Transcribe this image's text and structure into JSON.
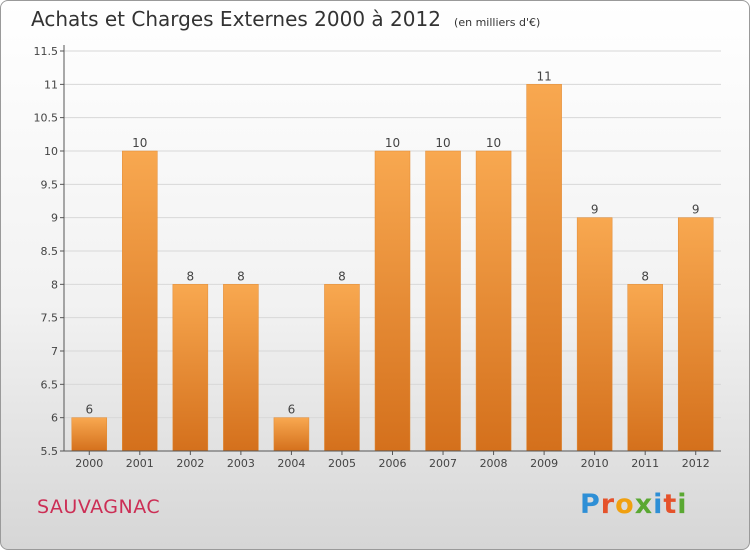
{
  "title": "Achats et Charges Externes 2000 à 2012",
  "subtitle": "(en milliers d'€)",
  "commune": "SAUVAGNAC",
  "brand": {
    "letters": [
      "P",
      "r",
      "o",
      "x",
      "i",
      "t",
      "i"
    ],
    "colors": [
      "#2e8fd6",
      "#e5522b",
      "#f0a010",
      "#5aa832",
      "#2e8fd6",
      "#e5522b",
      "#5aa832"
    ]
  },
  "colors": {
    "bar": "#f59a3b",
    "grid": "#d8d8d8",
    "axis": "#555555"
  },
  "chart_data": {
    "type": "bar",
    "title": "Achats et Charges Externes 2000 à 2012",
    "subtitle": "(en milliers d'€)",
    "categories": [
      "2000",
      "2001",
      "2002",
      "2003",
      "2004",
      "2005",
      "2006",
      "2007",
      "2008",
      "2009",
      "2010",
      "2011",
      "2012"
    ],
    "values": [
      6,
      10,
      8,
      8,
      6,
      8,
      10,
      10,
      10,
      11,
      9,
      8,
      9
    ],
    "ylim": [
      5.5,
      11.5
    ],
    "yticks": [
      "5.5",
      "6",
      "6.5",
      "7",
      "7.5",
      "8",
      "8.5",
      "9",
      "9.5",
      "10",
      "10.5",
      "11",
      "11.5"
    ],
    "grid": true,
    "legend": "none"
  }
}
